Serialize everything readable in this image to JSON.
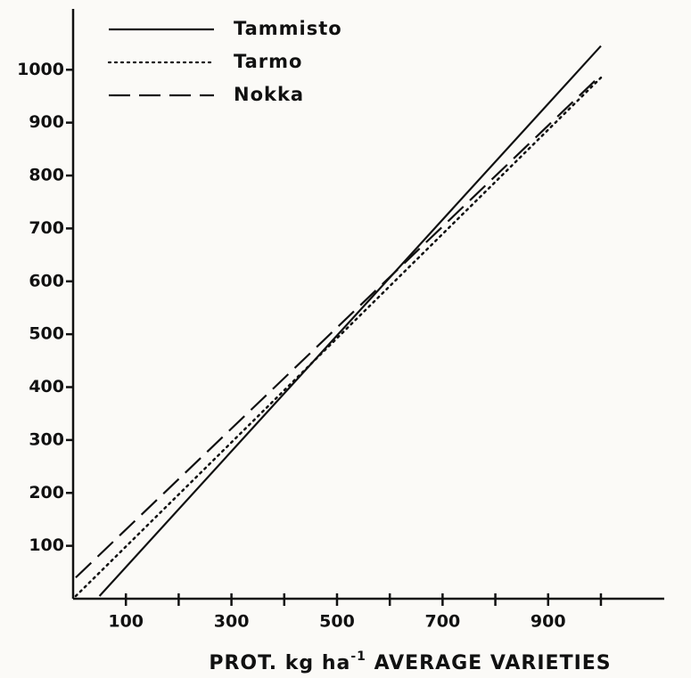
{
  "chart_data": {
    "type": "line",
    "xlabel": [
      "PROT. kg ha",
      "-1",
      " AVERAGE VARIETIES"
    ],
    "xlim": [
      0,
      1120
    ],
    "ylim": [
      0,
      1115
    ],
    "xticks": [
      100,
      300,
      500,
      700,
      900
    ],
    "xminor_ticks": [
      200,
      400,
      600,
      800,
      1000
    ],
    "yticks": [
      100,
      200,
      300,
      400,
      500,
      600,
      700,
      800,
      900,
      1000
    ],
    "legend": "upper left",
    "series": [
      {
        "name": "Tammisto",
        "color": "#111111",
        "style": "solid",
        "x": [
          50,
          1000
        ],
        "values": [
          5,
          1045
        ]
      },
      {
        "name": "Tarmo",
        "color": "#111111",
        "style": "dotted",
        "x": [
          5,
          1000
        ],
        "values": [
          5,
          985
        ]
      },
      {
        "name": "Nokka",
        "color": "#111111",
        "style": "dashed",
        "x": [
          5,
          1000
        ],
        "values": [
          40,
          990
        ]
      }
    ]
  }
}
